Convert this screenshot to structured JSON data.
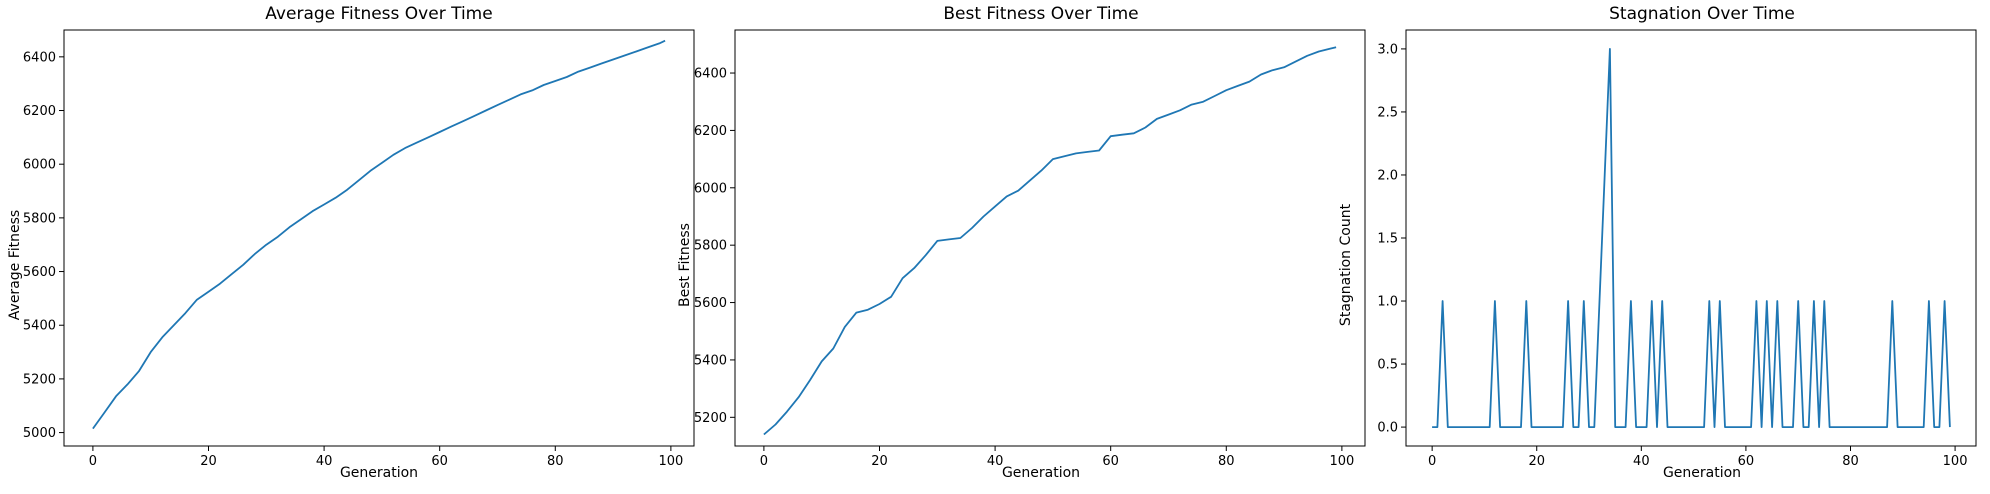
{
  "colors": {
    "line": "#1f77b4",
    "axes": "#000000",
    "background": "#ffffff"
  },
  "chart_data": [
    {
      "type": "line",
      "title": "Average Fitness Over Time",
      "xlabel": "Generation",
      "ylabel": "Average Fitness",
      "xlim": [
        -5,
        104
      ],
      "ylim": [
        4950,
        6500
      ],
      "xticks": [
        0,
        20,
        40,
        60,
        80,
        100
      ],
      "yticks": [
        5000,
        5200,
        5400,
        5600,
        5800,
        6000,
        6200,
        6400
      ],
      "grid": false,
      "series": [
        {
          "x": [
            0,
            2,
            4,
            6,
            8,
            10,
            12,
            14,
            16,
            18,
            20,
            22,
            24,
            26,
            28,
            30,
            32,
            34,
            36,
            38,
            40,
            42,
            44,
            46,
            48,
            50,
            52,
            54,
            56,
            58,
            60,
            62,
            64,
            66,
            68,
            70,
            72,
            74,
            76,
            78,
            80,
            82,
            84,
            86,
            88,
            90,
            92,
            94,
            96,
            98,
            99
          ],
          "values": [
            5015,
            5075,
            5135,
            5180,
            5230,
            5300,
            5355,
            5400,
            5445,
            5495,
            5525,
            5555,
            5590,
            5625,
            5665,
            5700,
            5730,
            5765,
            5795,
            5825,
            5850,
            5875,
            5905,
            5940,
            5975,
            6005,
            6035,
            6060,
            6080,
            6100,
            6120,
            6140,
            6160,
            6180,
            6200,
            6220,
            6240,
            6260,
            6275,
            6295,
            6310,
            6325,
            6345,
            6360,
            6375,
            6390,
            6405,
            6420,
            6435,
            6450,
            6460
          ]
        }
      ]
    },
    {
      "type": "line",
      "title": "Best Fitness Over Time",
      "xlabel": "Generation",
      "ylabel": "Best Fitness",
      "xlim": [
        -5,
        104
      ],
      "ylim": [
        5100,
        6550
      ],
      "xticks": [
        0,
        20,
        40,
        60,
        80,
        100
      ],
      "yticks": [
        5200,
        5400,
        5600,
        5800,
        6000,
        6200,
        6400
      ],
      "grid": false,
      "series": [
        {
          "x": [
            0,
            2,
            4,
            6,
            8,
            10,
            12,
            14,
            16,
            18,
            20,
            22,
            24,
            26,
            28,
            30,
            32,
            34,
            36,
            38,
            40,
            42,
            44,
            46,
            48,
            50,
            52,
            54,
            56,
            58,
            60,
            62,
            64,
            66,
            68,
            70,
            72,
            74,
            76,
            78,
            80,
            82,
            84,
            86,
            88,
            90,
            92,
            94,
            96,
            98,
            99
          ],
          "values": [
            5140,
            5175,
            5220,
            5270,
            5330,
            5395,
            5440,
            5515,
            5565,
            5575,
            5595,
            5620,
            5685,
            5720,
            5765,
            5815,
            5820,
            5825,
            5860,
            5900,
            5935,
            5970,
            5990,
            6025,
            6060,
            6100,
            6110,
            6120,
            6125,
            6130,
            6180,
            6185,
            6190,
            6210,
            6240,
            6255,
            6270,
            6290,
            6300,
            6320,
            6340,
            6355,
            6370,
            6395,
            6410,
            6420,
            6440,
            6460,
            6475,
            6485,
            6490
          ]
        }
      ]
    },
    {
      "type": "line",
      "title": "Stagnation Over Time",
      "xlabel": "Generation",
      "ylabel": "Stagnation Count",
      "xlim": [
        -5,
        104
      ],
      "ylim": [
        -0.15,
        3.15
      ],
      "xticks": [
        0,
        20,
        40,
        60,
        80,
        100
      ],
      "yticks": [
        0.0,
        0.5,
        1.0,
        1.5,
        2.0,
        2.5,
        3.0
      ],
      "ytick_labels": [
        "0.0",
        "0.5",
        "1.0",
        "1.5",
        "2.0",
        "2.5",
        "3.0"
      ],
      "grid": false,
      "series": [
        {
          "x": [
            0,
            1,
            2,
            3,
            11,
            12,
            13,
            17,
            18,
            19,
            25,
            26,
            27,
            28,
            29,
            30,
            31,
            32,
            33,
            34,
            35,
            37,
            38,
            39,
            41,
            42,
            43,
            44,
            45,
            46,
            52,
            53,
            54,
            55,
            56,
            61,
            62,
            63,
            64,
            65,
            66,
            67,
            69,
            70,
            71,
            72,
            73,
            74,
            75,
            76,
            87,
            88,
            89,
            94,
            95,
            96,
            97,
            98,
            99
          ],
          "values": [
            0,
            0,
            1,
            0,
            0,
            1,
            0,
            0,
            1,
            0,
            0,
            1,
            0,
            0,
            1,
            0,
            0,
            1,
            2,
            3,
            0,
            0,
            1,
            0,
            0,
            1,
            0,
            1,
            0,
            0,
            0,
            1,
            0,
            1,
            0,
            0,
            1,
            0,
            1,
            0,
            1,
            0,
            0,
            1,
            0,
            0,
            1,
            0,
            1,
            0,
            0,
            1,
            0,
            0,
            1,
            0,
            0,
            1,
            0
          ]
        }
      ]
    }
  ]
}
